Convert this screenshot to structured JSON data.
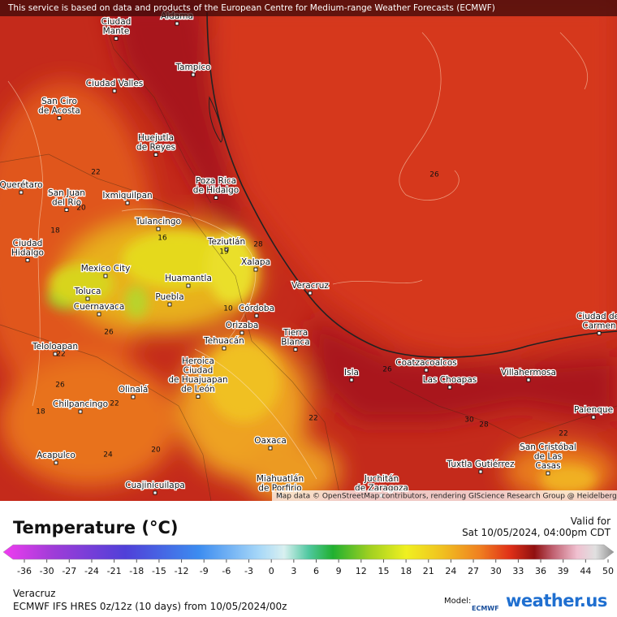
{
  "header": {
    "notice": "This service is based on data and products of the European Centre for Medium-range Weather Forecasts (ECMWF)"
  },
  "map": {
    "cities": [
      {
        "lines": [
          "Aldama"
        ]
      },
      {
        "lines": [
          "Ciudad",
          "Mante"
        ]
      },
      {
        "lines": [
          "Tampico"
        ]
      },
      {
        "lines": [
          "Ciudad Valles"
        ]
      },
      {
        "lines": [
          "San Ciro",
          "de Acosta"
        ]
      },
      {
        "lines": [
          "Huejutla",
          "de Reyes"
        ]
      },
      {
        "lines": [
          "Poza Rica",
          "de Hidalgo"
        ]
      },
      {
        "lines": [
          "Querétaro"
        ]
      },
      {
        "lines": [
          "San Juan",
          "del Río"
        ]
      },
      {
        "lines": [
          "Ixmiquilpan"
        ]
      },
      {
        "lines": [
          "Tulancingo"
        ]
      },
      {
        "lines": [
          "Teziutlán"
        ]
      },
      {
        "lines": [
          "Xalapa"
        ]
      },
      {
        "lines": [
          "Ciudad",
          "Hidalgo"
        ]
      },
      {
        "lines": [
          "Mexico City"
        ]
      },
      {
        "lines": [
          "Toluca"
        ]
      },
      {
        "lines": [
          "Huamantla"
        ]
      },
      {
        "lines": [
          "Puebla"
        ]
      },
      {
        "lines": [
          "Veracruz"
        ]
      },
      {
        "lines": [
          "Cuernavaca"
        ]
      },
      {
        "lines": [
          "Córdoba"
        ]
      },
      {
        "lines": [
          "Orizaba"
        ]
      },
      {
        "lines": [
          "Tierra",
          "Blanca"
        ]
      },
      {
        "lines": [
          "Tehuacán"
        ]
      },
      {
        "lines": [
          "Coatzacoalcos"
        ]
      },
      {
        "lines": [
          "Ciudad del",
          "Carmen"
        ]
      },
      {
        "lines": [
          "Teloloapan"
        ]
      },
      {
        "lines": [
          "Heroica",
          "Ciudad",
          "de Huajuapan",
          "de León"
        ]
      },
      {
        "lines": [
          "Isla"
        ]
      },
      {
        "lines": [
          "Las Choapas"
        ]
      },
      {
        "lines": [
          "Villahermosa"
        ]
      },
      {
        "lines": [
          "Olinalá"
        ]
      },
      {
        "lines": [
          "Chilpancingo"
        ]
      },
      {
        "lines": [
          "Palenque"
        ]
      },
      {
        "lines": [
          "Oaxaca"
        ]
      },
      {
        "lines": [
          "San Cristóbal",
          "de Las",
          "Casas"
        ]
      },
      {
        "lines": [
          "Acapulco"
        ]
      },
      {
        "lines": [
          "Tuxtla Gutiérrez"
        ]
      },
      {
        "lines": [
          "Juchitán",
          "de Zaragoza"
        ]
      },
      {
        "lines": [
          "Cuajinicuilapa"
        ]
      },
      {
        "lines": [
          "Miahuatlán",
          "de Porfirio"
        ]
      }
    ],
    "contour_labels": [
      22,
      20,
      18,
      16,
      26,
      28,
      19,
      10,
      26,
      22,
      26,
      22,
      18,
      24,
      20,
      22,
      26,
      30,
      28,
      22
    ],
    "attribution": "Map data © OpenStreetMap contributors, rendering GIScience Research Group @ Heidelberg University"
  },
  "legend": {
    "title": "Temperature (°C)",
    "valid_label": "Valid for",
    "valid_time": "Sat 10/05/2024, 04:00pm CDT",
    "ticks": [
      -36,
      -30,
      -27,
      -24,
      -21,
      -18,
      -15,
      -12,
      -9,
      -6,
      -3,
      0,
      3,
      6,
      9,
      12,
      15,
      18,
      21,
      24,
      27,
      30,
      33,
      36,
      39,
      44,
      50
    ]
  },
  "footer": {
    "location": "Veracruz",
    "model_run": "ECMWF IFS HRES 0z/12z (10 days) from  10/05/2024/00z",
    "model_label": "Model:",
    "model_logo": "ECMWF",
    "brand": "weather.us"
  }
}
